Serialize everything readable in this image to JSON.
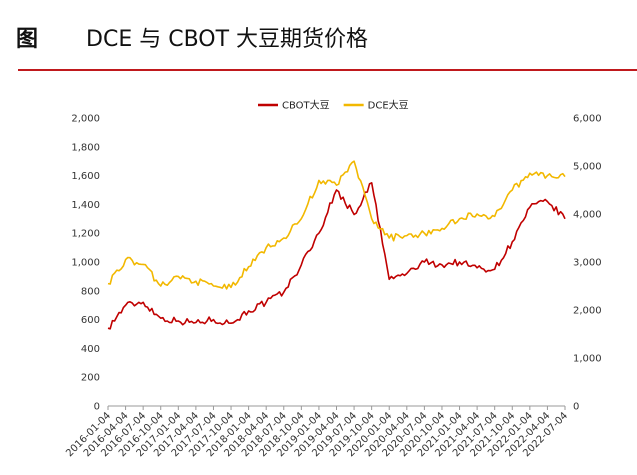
{
  "header": {
    "figure_label": "图",
    "title": "DCE 与 CBOT 大豆期货价格"
  },
  "colors": {
    "accent_rule": "#c0191d",
    "cbot": "#c00000",
    "dce": "#f2b800"
  },
  "chart_data": {
    "type": "line",
    "title": "",
    "xlabel": "",
    "ylabel": "",
    "legend_position": "top-center",
    "y_left": {
      "min": 0,
      "max": 2000,
      "ticks": [
        "0",
        "200",
        "400",
        "600",
        "800",
        "1,000",
        "1,200",
        "1,400",
        "1,600",
        "1,800",
        "2,000"
      ]
    },
    "y_right": {
      "min": 0,
      "max": 6000,
      "ticks": [
        "0",
        "1,000",
        "2,000",
        "3,000",
        "4,000",
        "5,000",
        "6,000"
      ]
    },
    "x_ticks": [
      "2016-01-04",
      "2016-04-04",
      "2016-07-04",
      "2016-10-04",
      "2017-01-04",
      "2017-04-04",
      "2017-07-04",
      "2017-10-04",
      "2018-01-04",
      "2018-04-04",
      "2018-07-04",
      "2018-10-04",
      "2019-01-04",
      "2019-04-04",
      "2019-07-04",
      "2019-10-04",
      "2020-01-04",
      "2020-04-04",
      "2020-07-04",
      "2020-10-04",
      "2021-01-04",
      "2021-04-04",
      "2021-07-04",
      "2021-10-04",
      "2022-01-04",
      "2022-04-04",
      "2022-07-04"
    ],
    "series": [
      {
        "name": "CBOT大豆",
        "axis": "left",
        "color": "#c00000",
        "values": [
          540,
          700,
          720,
          610,
          590,
          580,
          600,
          575,
          660,
          720,
          790,
          980,
          1200,
          1500,
          1330,
          1550,
          880,
          920,
          1000,
          980,
          1000,
          960,
          950,
          1140,
          1380,
          1420,
          1300
        ]
      },
      {
        "name": "DCE大豆",
        "axis": "right",
        "color": "#f2b800",
        "values": [
          2550,
          3050,
          2950,
          2500,
          2700,
          2600,
          2500,
          2470,
          2900,
          3300,
          3500,
          3900,
          4700,
          4600,
          5100,
          3900,
          3500,
          3550,
          3600,
          3700,
          3900,
          4000,
          3950,
          4500,
          4850,
          4800,
          4780
        ]
      }
    ]
  }
}
